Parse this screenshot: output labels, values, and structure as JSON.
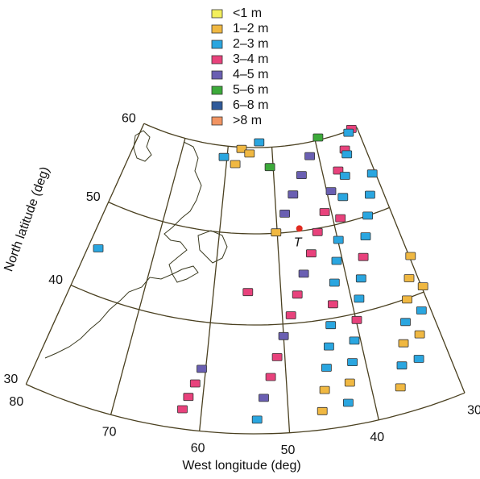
{
  "x_label": "West longitude (deg)",
  "y_label": "North latitude (deg)",
  "lat_ticks": [
    30,
    40,
    50,
    60
  ],
  "lon_ticks": [
    80,
    70,
    60,
    50,
    40,
    30
  ],
  "legend": [
    {
      "label": "<1 m",
      "color": "#f3ef5c"
    },
    {
      "label": "1–2 m",
      "color": "#f0b842"
    },
    {
      "label": "2–3 m",
      "color": "#2aa6e0"
    },
    {
      "label": "3–4 m",
      "color": "#e8427c"
    },
    {
      "label": "4–5 m",
      "color": "#6a5fb2"
    },
    {
      "label": "5–6 m",
      "color": "#3caa3a"
    },
    {
      "label": "6–8 m",
      "color": "#2f5a9a"
    },
    {
      "label": ">8 m",
      "color": "#f29462"
    }
  ],
  "tracks": [
    {
      "lon": [
        31.3,
        34.2,
        36.8,
        39.2,
        41.2,
        43.1,
        44.7,
        46.3,
        47.6,
        48.8,
        50.0,
        51.0,
        51.9,
        52.8,
        53.6
      ],
      "lat": [
        60.1,
        58.1,
        56.0,
        53.9,
        51.7,
        49.6,
        47.4,
        45.3,
        43.1,
        40.9,
        38.9,
        37.0,
        35.2,
        33.3,
        31.3
      ],
      "class": [
        3,
        3,
        3,
        4,
        3,
        3,
        3,
        4,
        3,
        3,
        4,
        3,
        3,
        4,
        2
      ]
    },
    {
      "lon": [
        32.2,
        34.1,
        35.8,
        37.3,
        38.7,
        39.9,
        40.9,
        41.9,
        42.7,
        43.5,
        44.2,
        44.9,
        45.5,
        46.1
      ],
      "lat": [
        59.8,
        57.5,
        55.2,
        52.9,
        50.6,
        48.3,
        46.1,
        43.8,
        41.5,
        39.4,
        37.5,
        35.6,
        33.6,
        31.7
      ],
      "class": [
        2,
        2,
        2,
        2,
        3,
        2,
        2,
        2,
        3,
        2,
        2,
        2,
        1,
        1
      ]
    },
    {
      "lon": [
        30.6,
        32.4,
        34.0,
        35.4,
        36.7,
        37.9,
        38.9,
        39.9,
        40.8,
        41.6,
        42.4,
        43.0
      ],
      "lat": [
        54.4,
        52.2,
        50.0,
        47.9,
        45.8,
        43.6,
        41.5,
        39.4,
        37.6,
        35.7,
        33.9,
        32.1
      ],
      "class": [
        2,
        2,
        2,
        2,
        3,
        2,
        2,
        3,
        2,
        2,
        1,
        2
      ]
    },
    {
      "lon": [
        29.8,
        31.2,
        32.5,
        33.7,
        34.8,
        35.8,
        36.7
      ],
      "lat": [
        44.2,
        42.0,
        39.9,
        38.0,
        36.2,
        34.3,
        32.4
      ],
      "class": [
        1,
        1,
        1,
        2,
        1,
        2,
        1
      ]
    },
    {
      "lon": [
        29.8,
        31.2,
        32.5,
        33.6
      ],
      "lat": [
        40.6,
        38.5,
        36.5,
        34.4
      ],
      "class": [
        1,
        2,
        1,
        2
      ]
    },
    {
      "lon": [
        39.2,
        41.9,
        44.3,
        46.5,
        48.4,
        50.2
      ],
      "lat": [
        60.3,
        58.4,
        56.4,
        54.3,
        52.2,
        50.1
      ],
      "class": [
        5,
        4,
        4,
        4,
        4,
        1
      ]
    },
    {
      "lon": [
        56.9,
        58.1,
        55.1,
        52.9,
        60.7,
        50.7
      ],
      "lat": [
        59.8,
        58.0,
        59.3,
        60.6,
        58.7,
        57.7
      ],
      "class": [
        1,
        1,
        1,
        2,
        2,
        5
      ]
    },
    {
      "lon": [
        78.5,
        54.9
      ],
      "lat": [
        44.9,
        43.6
      ],
      "class": [
        2,
        3
      ]
    },
    {
      "lon": [
        60.5,
        61.1,
        61.7,
        62.2
      ],
      "lat": [
        35.7,
        34.3,
        33.0,
        31.8
      ],
      "class": [
        4,
        3,
        3,
        3
      ]
    }
  ],
  "marker": {
    "label": "T",
    "lon": 46.1,
    "lat": 50.3,
    "color": "#e02a20"
  }
}
